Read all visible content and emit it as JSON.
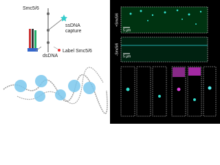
{
  "diagram": {
    "complex_label": "Smc5/6",
    "capture_label": [
      "ssDNA",
      "capture"
    ],
    "dna_label": "dsDNA",
    "tag_label": "Label Smc5/6"
  },
  "micrographs": {
    "top": {
      "side_label": "+Smc5/6",
      "scale": "5 µm"
    },
    "middle": {
      "side_label": "-Smc5/6",
      "scale": "5 µm"
    }
  }
}
